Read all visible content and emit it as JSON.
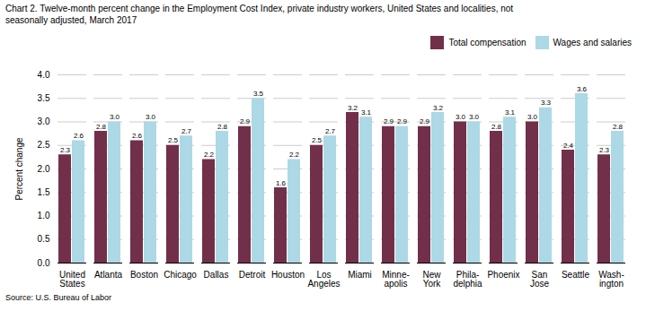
{
  "chart_data": {
    "type": "bar",
    "title": "Chart 2. Twelve-month percent change in the Employment Cost Index, private industry workers, United States and localities, not\nseasonally adjusted, March 2017",
    "caption": "Source: U.S. Bureau of Labor",
    "ylabel": "Percent change",
    "categories": [
      "United\nStates",
      "Atlanta",
      "Boston",
      "Chicago",
      "Dallas",
      "Detroit",
      "Houston",
      "Los\nAngeles",
      "Miami",
      "Minne-\napolis",
      "New\nYork",
      "Phila-\ndelphia",
      "Phoenix",
      "San\nJose",
      "Seattle",
      "Wash-\nington"
    ],
    "series": [
      {
        "name": "Total compensation",
        "color": "#722F4A",
        "values": [
          2.3,
          2.8,
          2.6,
          2.5,
          2.2,
          2.9,
          1.6,
          2.5,
          3.2,
          2.9,
          2.9,
          3.0,
          2.8,
          3.0,
          2.4,
          2.3
        ],
        "value_labels": [
          "2.3",
          "2.8",
          "2.6",
          "2.5",
          "2.2",
          "2.9",
          "1.6",
          "2.5",
          "3.2",
          "2.9",
          "2.9",
          "3.0",
          "2.8",
          "3.0",
          "2.4",
          "2.3"
        ]
      },
      {
        "name": "Wages and salaries",
        "color": "#ADD8E6",
        "values": [
          2.6,
          3.0,
          3.0,
          2.7,
          2.8,
          3.5,
          2.2,
          2.7,
          3.1,
          2.9,
          3.2,
          3.0,
          3.1,
          3.3,
          3.6,
          2.8
        ],
        "value_labels": [
          "2.6",
          "3.0",
          "3.0",
          "2.7",
          "2.8",
          "3.5",
          "2.2",
          "2.7",
          "3.1",
          "2.9",
          "3.2",
          "3.0",
          "3.1",
          "3.3",
          "3.6",
          "2.8"
        ]
      }
    ],
    "ylim": [
      0.0,
      4.0
    ],
    "yticks": [
      {
        "value": 0,
        "label": "0.0"
      },
      0.5,
      {
        "value": 1,
        "label": "1.0"
      },
      1.5,
      {
        "value": 2,
        "label": "2.0"
      },
      2.5,
      {
        "value": 3,
        "label": "3.0"
      },
      3.5,
      {
        "value": 4,
        "label": "4.0"
      }
    ],
    "grid": true,
    "legend": "upper right",
    "data_labels": true
  }
}
